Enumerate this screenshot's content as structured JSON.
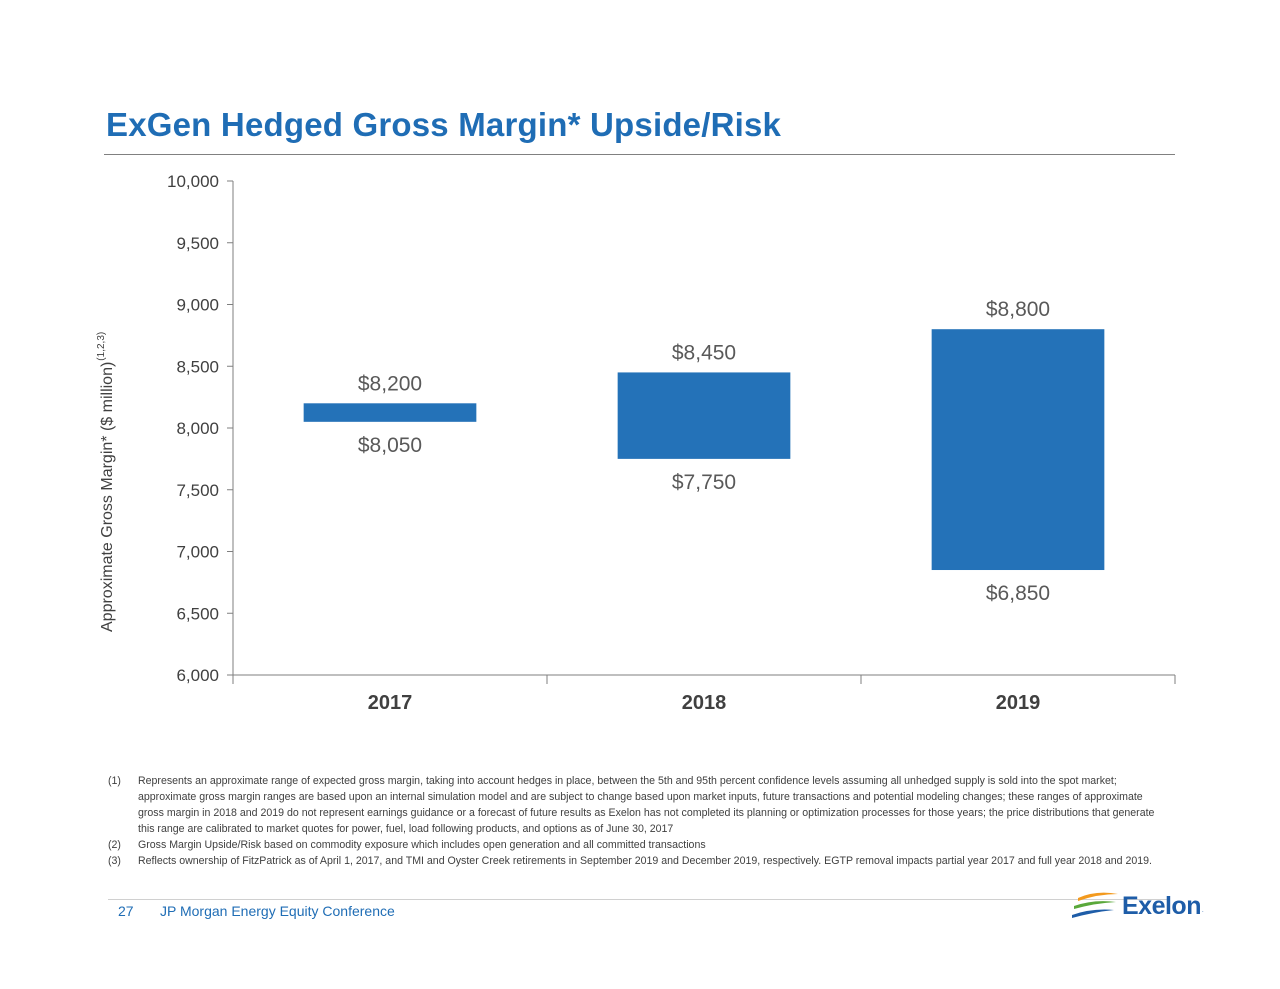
{
  "page": {
    "title": "ExGen Hedged Gross Margin* Upside/Risk",
    "page_number": "27",
    "conference": "JP Morgan Energy Equity Conference",
    "logo_text": "Exelon",
    "logo_mark": "."
  },
  "chart_data": {
    "type": "bar",
    "subtype": "floating-range",
    "title": "",
    "xlabel": "",
    "ylabel": "Approximate Gross Margin* ($ million)",
    "ylabel_superscript": "(1,2,3)",
    "ylim": [
      6000,
      10000
    ],
    "yticks": [
      "6,000",
      "6,500",
      "7,000",
      "7,500",
      "8,000",
      "8,500",
      "9,000",
      "9,500",
      "10,000"
    ],
    "categories": [
      "2017",
      "2018",
      "2019"
    ],
    "low": [
      8050,
      7750,
      6850
    ],
    "high": [
      8200,
      8450,
      8800
    ],
    "low_labels": [
      "$8,050",
      "$7,750",
      "$6,850"
    ],
    "high_labels": [
      "$8,200",
      "$8,450",
      "$8,800"
    ],
    "bar_color": "#2472b8",
    "grid": false,
    "legend": "none"
  },
  "footnotes": [
    {
      "num": "(1)",
      "text": "Represents an approximate range of expected gross margin, taking into account hedges in place, between the 5th and 95th percent confidence levels assuming all unhedged supply is sold into the spot market; approximate gross margin ranges are based upon an internal simulation model and are subject to change based upon market inputs, future transactions and potential modeling changes; these ranges of approximate gross margin in 2018 and 2019 do not represent earnings guidance or a forecast of future results as Exelon has not completed its planning or optimization processes for those years; the price distributions that generate this range are calibrated to market quotes for power, fuel, load following products, and options as of June 30, 2017"
    },
    {
      "num": "(2)",
      "text": "Gross Margin Upside/Risk based on commodity exposure which includes open generation and all committed transactions"
    },
    {
      "num": "(3)",
      "text": "Reflects ownership of FitzPatrick as of April 1, 2017, and TMI and Oyster Creek retirements in September 2019 and December 2019, respectively. EGTP removal impacts partial year 2017 and full year 2018 and 2019."
    }
  ]
}
